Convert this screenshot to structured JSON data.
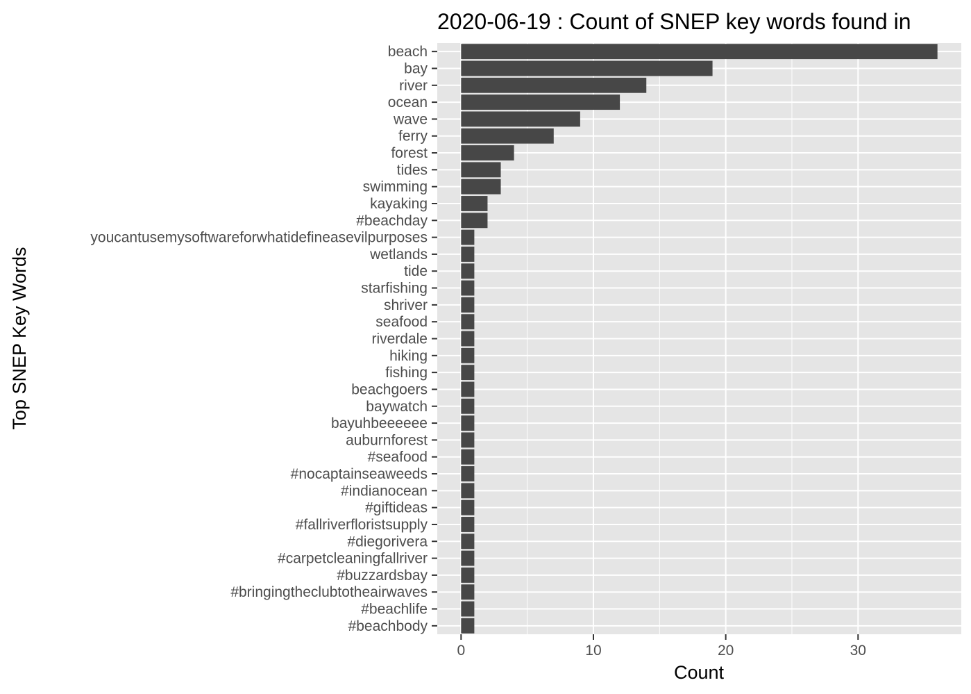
{
  "chart_data": {
    "type": "bar",
    "orientation": "horizontal",
    "title": "2020-06-19 : Count of SNEP key words found in",
    "xlabel": "Count",
    "ylabel": "Top SNEP Key Words",
    "xlim": [
      -1.8,
      37.8
    ],
    "xticks": [
      0,
      10,
      20,
      30
    ],
    "grid": true,
    "categories": [
      "beach",
      "bay",
      "river",
      "ocean",
      "wave",
      "ferry",
      "forest",
      "tides",
      "swimming",
      "kayaking",
      "#beachday",
      "youcantusemysoftwareforwhatidefineasevilpurposes",
      "wetlands",
      "tide",
      "starfishing",
      "shriver",
      "seafood",
      "riverdale",
      "hiking",
      "fishing",
      "beachgoers",
      "baywatch",
      "bayuhbeeeeee",
      "auburnforest",
      "#seafood",
      "#nocaptainseaweeds",
      "#indianocean",
      "#giftideas",
      "#fallriverfloristsupply",
      "#diegorivera",
      "#carpetcleaningfallriver",
      "#buzzardsbay",
      "#bringingtheclubtotheairwaves",
      "#beachlife",
      "#beachbody"
    ],
    "values": [
      36,
      19,
      14,
      12,
      9,
      7,
      4,
      3,
      3,
      2,
      2,
      1,
      1,
      1,
      1,
      1,
      1,
      1,
      1,
      1,
      1,
      1,
      1,
      1,
      1,
      1,
      1,
      1,
      1,
      1,
      1,
      1,
      1,
      1,
      1
    ],
    "colors": {
      "panel": "#e5e5e5",
      "grid_major": "#ffffff",
      "bar": "#474747",
      "tick_text": "#4d4d4d",
      "tick_mark": "#333333",
      "text": "#000000"
    }
  }
}
